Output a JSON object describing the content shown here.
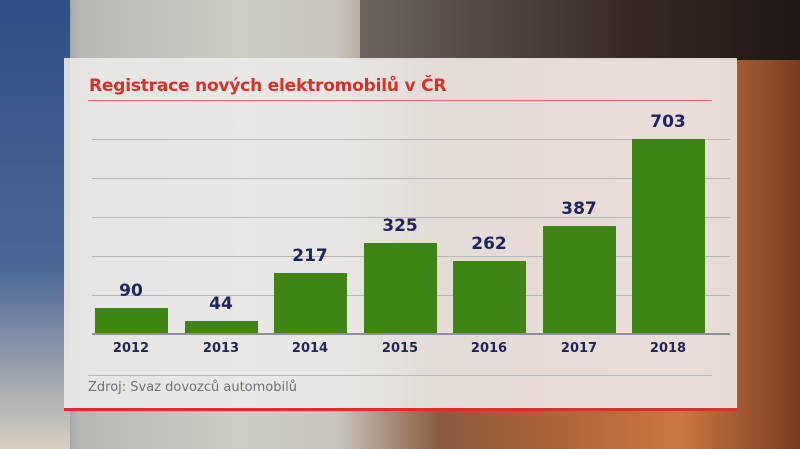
{
  "chart_data": {
    "type": "bar",
    "title": "Registrace nových elektromobilů v ČR",
    "categories": [
      "2012",
      "2013",
      "2014",
      "2015",
      "2016",
      "2017",
      "2018"
    ],
    "values": [
      90,
      44,
      217,
      325,
      262,
      387,
      703
    ],
    "xlabel": "",
    "ylabel": "",
    "ylim": [
      0,
      703
    ],
    "grid": true,
    "legend": null,
    "bar_color": "#3f8515",
    "source": "Zdroj: Svaz dovozců automobilů"
  },
  "header": {
    "title": "Registrace nových elektromobilů v ČR"
  },
  "footer": {
    "source": "Zdroj: Svaz dovozců automobilů"
  },
  "colors": {
    "accent": "#d9302c",
    "bar": "#3f8515",
    "label": "#1f2560"
  }
}
